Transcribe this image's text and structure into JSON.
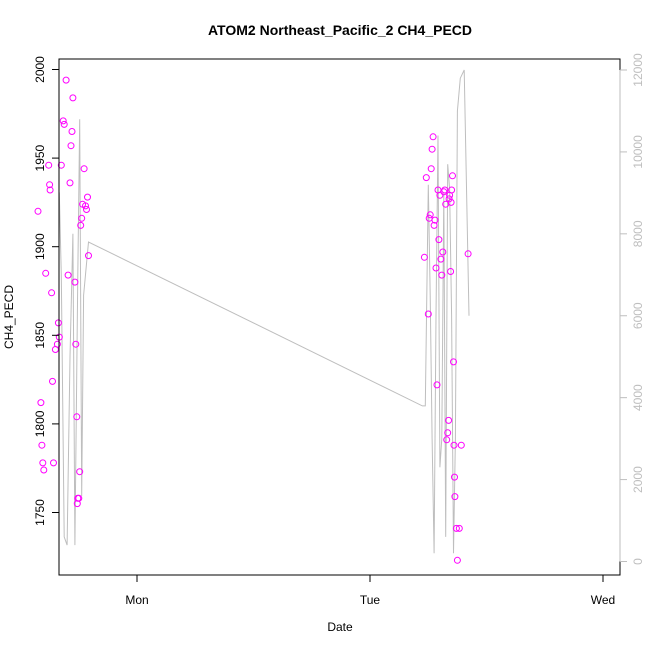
{
  "chart_data": {
    "type": "scatter",
    "title": "ATOM2 Northeast_Pacific_2 CH4_PECD",
    "xlabel": "Date",
    "ylabel": "CH4_PECD",
    "x_ticks": [
      "Mon",
      "Tue",
      "Wed"
    ],
    "y_ticks": [
      1750,
      1800,
      1850,
      1900,
      1950,
      2000
    ],
    "y_range": [
      1722,
      2003
    ],
    "y2_ticks": [
      0,
      2000,
      4000,
      6000,
      8000,
      10000,
      12000
    ],
    "y2_range": [
      -200,
      12500
    ],
    "x_range_hours_from_mon": [
      -11.5,
      39
    ],
    "colors": {
      "points": "#ff00ff",
      "line": "#bebebe",
      "axis": "#000000",
      "axis2": "#bebebe"
    },
    "series": [
      {
        "type": "scatter",
        "axis": "left",
        "points": [
          [
            -10.2,
            1920
          ],
          [
            -9.9,
            1812
          ],
          [
            -9.8,
            1788
          ],
          [
            -9.7,
            1778
          ],
          [
            -9.6,
            1774
          ],
          [
            -9.4,
            1885
          ],
          [
            -9.1,
            1946
          ],
          [
            -9.0,
            1935
          ],
          [
            -8.95,
            1932
          ],
          [
            -8.8,
            1874
          ],
          [
            -8.7,
            1824
          ],
          [
            -8.6,
            1778
          ],
          [
            -8.4,
            1842
          ],
          [
            -8.2,
            1845
          ],
          [
            -8.1,
            1857
          ],
          [
            -8.0,
            1849
          ],
          [
            -7.8,
            1946
          ],
          [
            -7.6,
            1971
          ],
          [
            -7.5,
            1969
          ],
          [
            -7.3,
            1994
          ],
          [
            -7.1,
            1884
          ],
          [
            -6.9,
            1936
          ],
          [
            -6.8,
            1957
          ],
          [
            -6.7,
            1965
          ],
          [
            -6.6,
            1984
          ],
          [
            -6.4,
            1880
          ],
          [
            -6.3,
            1845
          ],
          [
            -6.2,
            1804
          ],
          [
            -6.15,
            1755
          ],
          [
            -6.1,
            1758
          ],
          [
            -6.0,
            1758
          ],
          [
            -5.9,
            1773
          ],
          [
            -5.8,
            1912
          ],
          [
            -5.7,
            1916
          ],
          [
            -5.6,
            1924
          ],
          [
            -5.45,
            1944
          ],
          [
            -5.3,
            1923
          ],
          [
            -5.2,
            1921
          ],
          [
            -5.1,
            1928
          ],
          [
            -5.0,
            1895
          ],
          [
            29.6,
            1894
          ],
          [
            29.8,
            1939
          ],
          [
            30.0,
            1862
          ],
          [
            30.1,
            1916
          ],
          [
            30.2,
            1918
          ],
          [
            30.3,
            1944
          ],
          [
            30.4,
            1955
          ],
          [
            30.5,
            1962
          ],
          [
            30.6,
            1912
          ],
          [
            30.7,
            1915
          ],
          [
            30.8,
            1888
          ],
          [
            30.9,
            1822
          ],
          [
            31.0,
            1932
          ],
          [
            31.1,
            1904
          ],
          [
            31.2,
            1929
          ],
          [
            31.3,
            1893
          ],
          [
            31.4,
            1884
          ],
          [
            31.5,
            1897
          ],
          [
            31.6,
            1931
          ],
          [
            31.7,
            1932
          ],
          [
            31.8,
            1924
          ],
          [
            31.9,
            1791
          ],
          [
            32.0,
            1795
          ],
          [
            32.1,
            1802
          ],
          [
            32.15,
            1927
          ],
          [
            32.2,
            1929
          ],
          [
            32.3,
            1886
          ],
          [
            32.35,
            1925
          ],
          [
            32.4,
            1932
          ],
          [
            32.5,
            1940
          ],
          [
            32.6,
            1835
          ],
          [
            32.65,
            1788
          ],
          [
            32.7,
            1770
          ],
          [
            32.75,
            1759
          ],
          [
            32.9,
            1741
          ],
          [
            33.0,
            1723
          ],
          [
            33.2,
            1741
          ],
          [
            33.4,
            1788
          ],
          [
            34.1,
            1896
          ]
        ]
      },
      {
        "type": "line",
        "axis": "right",
        "points": [
          [
            -10.0,
            6900
          ],
          [
            -9.7,
            9500
          ],
          [
            -9.4,
            9500
          ],
          [
            -9.1,
            4000
          ],
          [
            -8.9,
            8500
          ],
          [
            -8.6,
            9700
          ],
          [
            -8.3,
            9000
          ],
          [
            -8.0,
            9000
          ],
          [
            -7.8,
            7000
          ],
          [
            -7.5,
            600
          ],
          [
            -7.2,
            400
          ],
          [
            -6.9,
            5000
          ],
          [
            -6.6,
            8000
          ],
          [
            -6.4,
            400
          ],
          [
            -6.1,
            7000
          ],
          [
            -5.9,
            10800
          ],
          [
            -5.7,
            1600
          ],
          [
            -5.5,
            6500
          ],
          [
            -5.0,
            7800
          ],
          [
            29.4,
            3800
          ],
          [
            29.7,
            3800
          ],
          [
            30.0,
            9200
          ],
          [
            30.2,
            6500
          ],
          [
            30.4,
            3000
          ],
          [
            30.6,
            200
          ],
          [
            30.8,
            6000
          ],
          [
            31.0,
            10400
          ],
          [
            31.2,
            2300
          ],
          [
            31.4,
            3000
          ],
          [
            31.6,
            9000
          ],
          [
            31.8,
            600
          ],
          [
            32.0,
            9700
          ],
          [
            32.2,
            9100
          ],
          [
            32.4,
            6000
          ],
          [
            32.6,
            200
          ],
          [
            32.8,
            3000
          ],
          [
            33.0,
            11000
          ],
          [
            33.3,
            11800
          ],
          [
            33.7,
            12000
          ],
          [
            34.2,
            6000
          ]
        ]
      }
    ]
  }
}
